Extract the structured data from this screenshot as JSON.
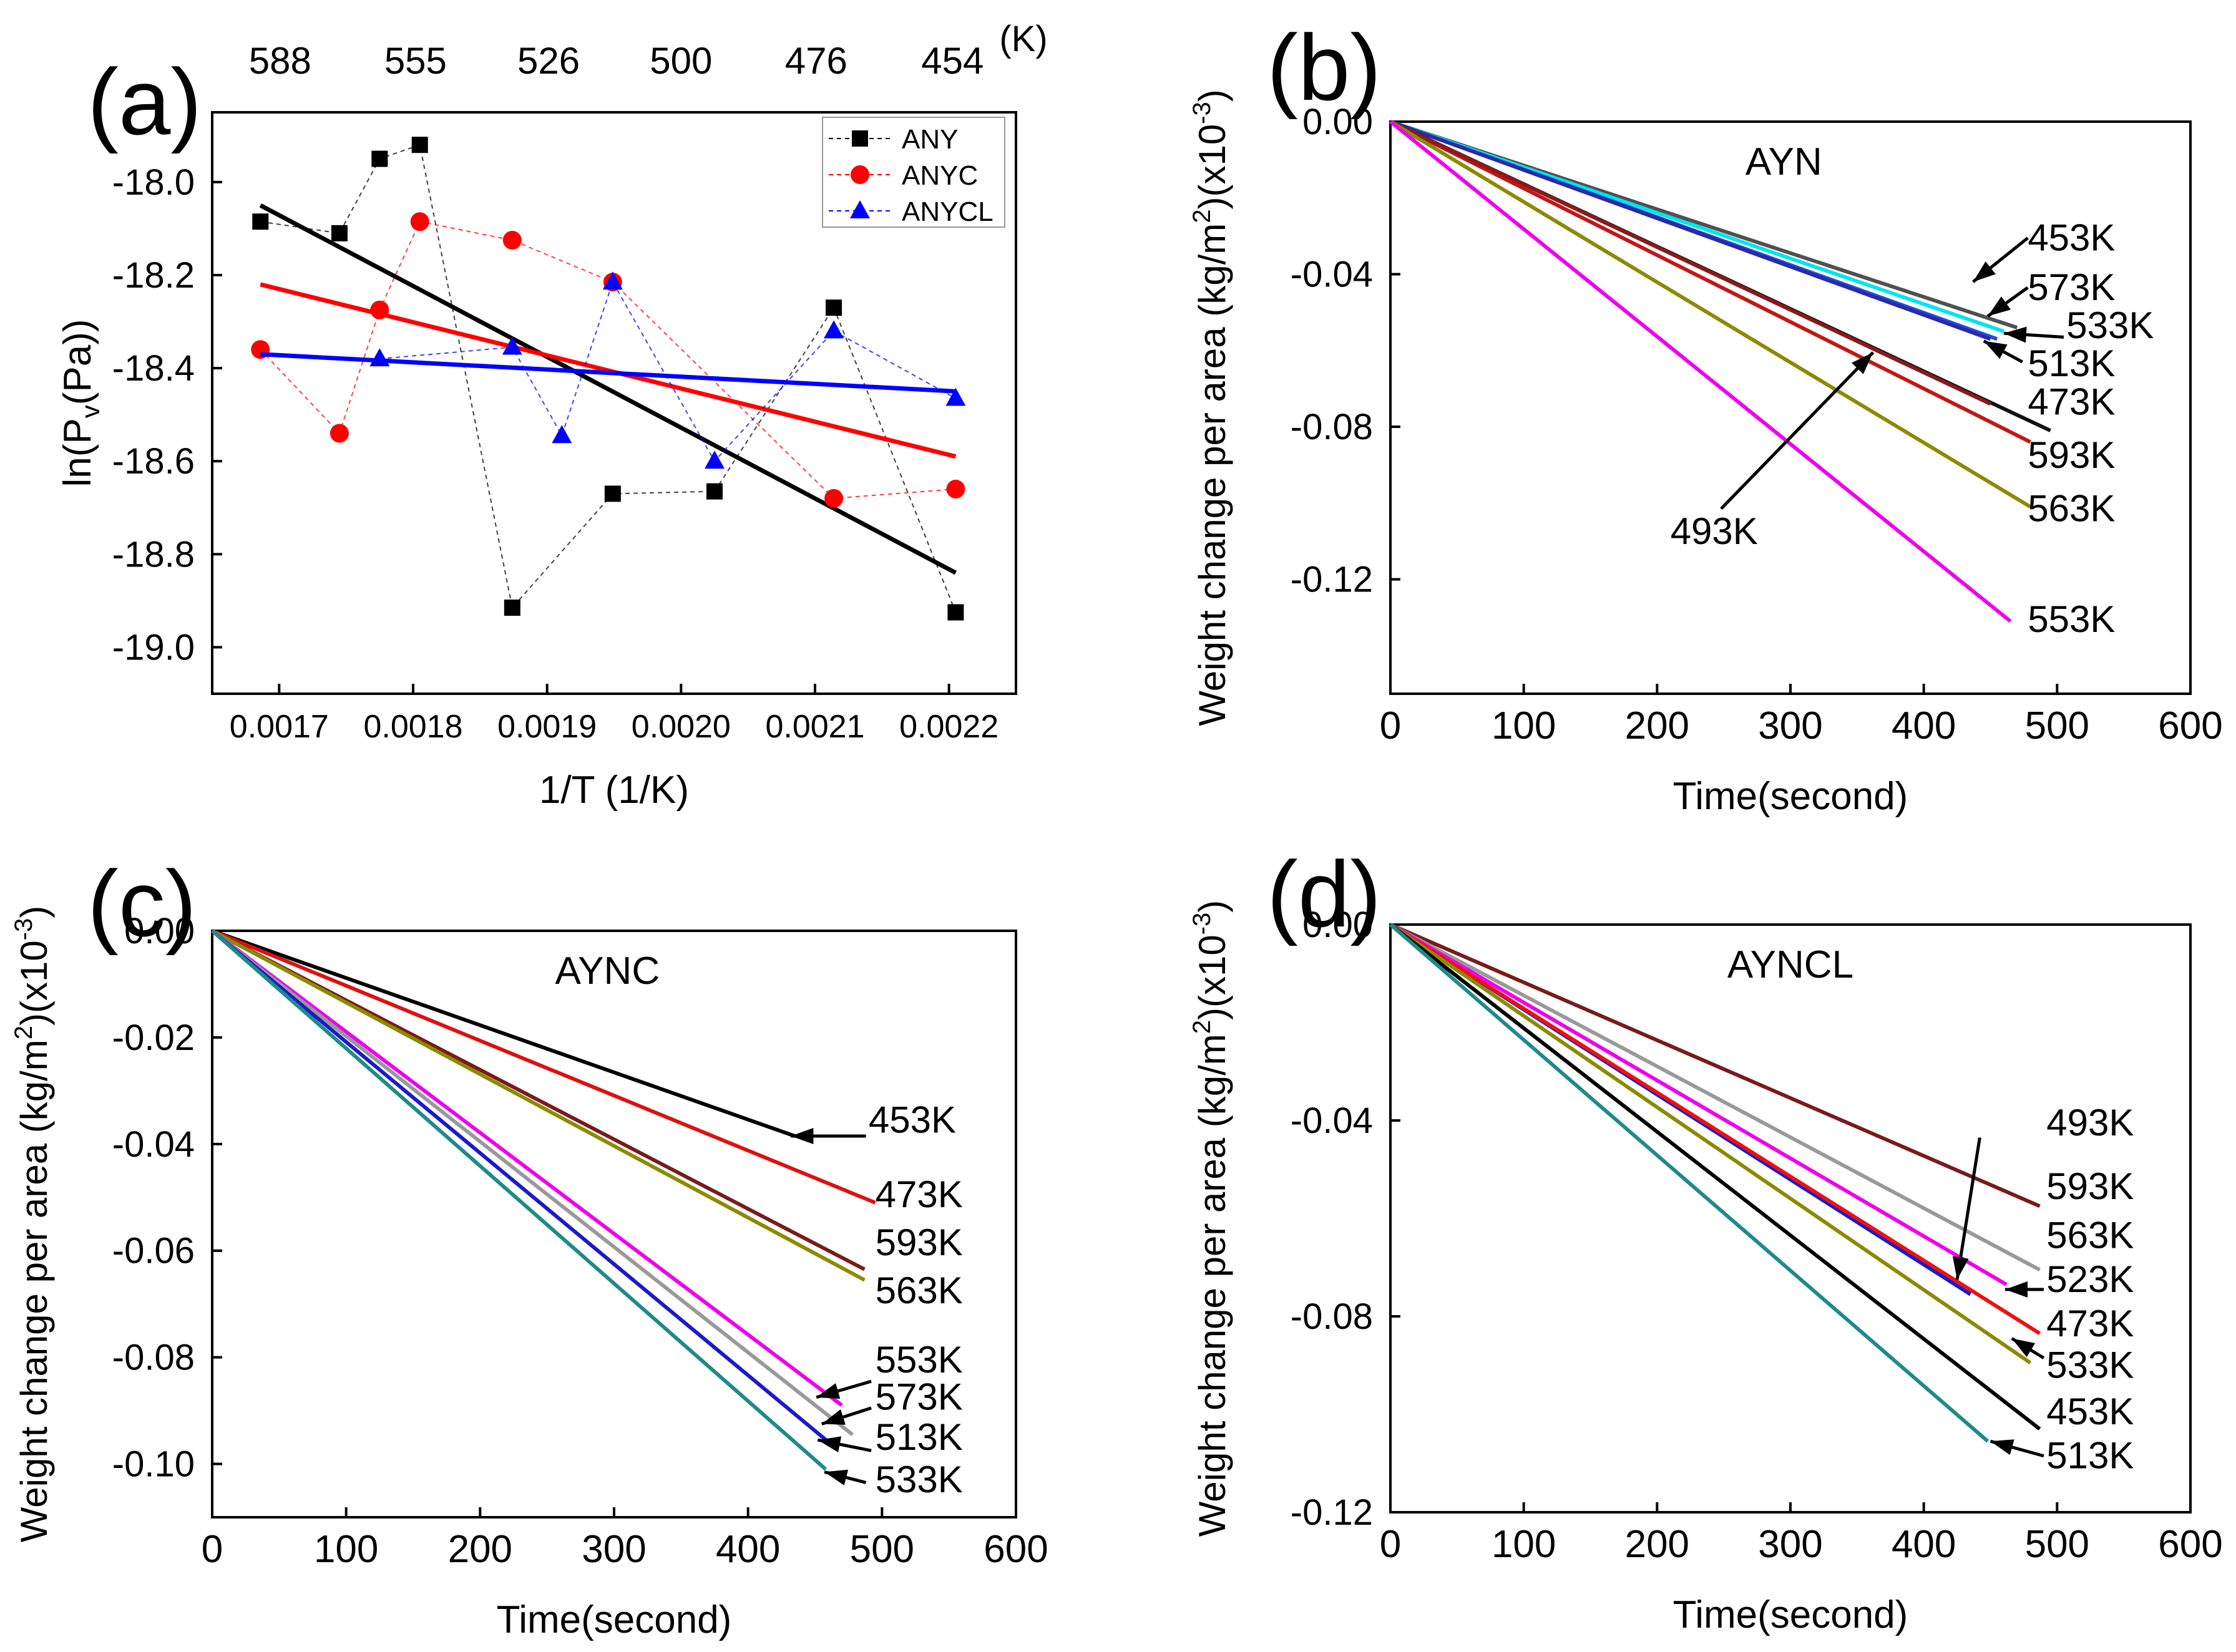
{
  "chart_data": [
    {
      "panel_label": "(a)",
      "type": "scatter",
      "title": "",
      "xlabel": "1/T (1/K)",
      "ylabel": "ln(P_v(Pa))",
      "ylabel_main": "ln(P",
      "ylabel_sub": "v",
      "ylabel_tail": "(Pa))",
      "xlim": [
        0.00165,
        0.00225
      ],
      "ylim": [
        -19.1,
        -17.85
      ],
      "xticks": [
        0.0017,
        0.0018,
        0.0019,
        0.002,
        0.0021,
        0.0022
      ],
      "xtick_labels": [
        "0.0017",
        "0.0018",
        "0.0019",
        "0.0020",
        "0.0021",
        "0.0022"
      ],
      "yticks": [
        -19.0,
        -18.8,
        -18.6,
        -18.4,
        -18.2,
        -18.0
      ],
      "ytick_labels": [
        "-19.0",
        "-18.8",
        "-18.6",
        "-18.4",
        "-18.2",
        "-18.0"
      ],
      "top_axis_label": "(K)",
      "top_ticks": [
        588,
        555,
        526,
        500,
        476,
        454
      ],
      "top_tick_labels": [
        "588",
        "555",
        "526",
        "500",
        "476",
        "454"
      ],
      "legend_position": "top-right",
      "series": [
        {
          "name": "ANY",
          "color": "#000000",
          "marker": "square",
          "x": [
            0.001686,
            0.001745,
            0.001775,
            0.001805,
            0.001874,
            0.001949,
            0.002025,
            0.002114,
            0.002205
          ],
          "y": [
            -18.085,
            -18.11,
            -17.95,
            -17.92,
            -18.915,
            -18.67,
            -18.665,
            -18.27,
            -18.925
          ],
          "fit": {
            "x": [
              0.001686,
              0.002205
            ],
            "y": [
              -18.05,
              -18.84
            ]
          }
        },
        {
          "name": "ANYC",
          "color": "#ff0000",
          "marker": "circle",
          "x": [
            0.001686,
            0.001745,
            0.001775,
            0.001805,
            0.001874,
            0.001949,
            0.002114,
            0.002205
          ],
          "y": [
            -18.36,
            -18.54,
            -18.275,
            -18.085,
            -18.125,
            -18.215,
            -18.68,
            -18.66
          ],
          "fit": {
            "x": [
              0.001686,
              0.002205
            ],
            "y": [
              -18.22,
              -18.59
            ]
          }
        },
        {
          "name": "ANYCL",
          "color": "#0000ff",
          "marker": "triangle",
          "x": [
            0.001775,
            0.001874,
            0.001911,
            0.001949,
            0.002025,
            0.002114,
            0.002205
          ],
          "y": [
            -18.38,
            -18.355,
            -18.545,
            -18.215,
            -18.6,
            -18.32,
            -18.465
          ],
          "fit": {
            "x": [
              0.001686,
              0.002205
            ],
            "y": [
              -18.37,
              -18.45
            ]
          }
        }
      ]
    },
    {
      "panel_label": "(b)",
      "type": "line",
      "title": "AYN",
      "xlabel": "Time(second)",
      "ylabel_pre": "Weight change per area (kg/m",
      "ylabel_sup1": "2",
      "ylabel_mid": ")(x10",
      "ylabel_sup2": "-3",
      "ylabel_post": ")",
      "xlim": [
        0,
        600
      ],
      "ylim": [
        -0.15,
        0.0
      ],
      "xticks": [
        0,
        100,
        200,
        300,
        400,
        500,
        600
      ],
      "xtick_labels": [
        "0",
        "100",
        "200",
        "300",
        "400",
        "500",
        "600"
      ],
      "yticks": [
        0.0,
        -0.04,
        -0.08,
        -0.12
      ],
      "ytick_labels": [
        "0.00",
        "-0.04",
        "-0.08",
        "-0.12"
      ],
      "series": [
        {
          "name": "453K",
          "color": "#505050",
          "x": [
            0,
            470
          ],
          "y": [
            0,
            -0.054
          ]
        },
        {
          "name": "573K",
          "color": "#00e5ee",
          "x": [
            0,
            460
          ],
          "y": [
            0,
            -0.055
          ]
        },
        {
          "name": "533K",
          "color": "#1e4fd6",
          "x": [
            0,
            455
          ],
          "y": [
            0,
            -0.057
          ]
        },
        {
          "name": "513K",
          "color": "#2a2aa8",
          "x": [
            0,
            450
          ],
          "y": [
            0,
            -0.057
          ]
        },
        {
          "name": "473K",
          "color": "#111111",
          "x": [
            0,
            495
          ],
          "y": [
            0,
            -0.081
          ]
        },
        {
          "name": "593K",
          "color": "#c01818",
          "x": [
            0,
            480
          ],
          "y": [
            0,
            -0.084
          ]
        },
        {
          "name": "493K",
          "color": "#8b1a1a",
          "x": [
            0,
            450
          ],
          "y": [
            0,
            -0.074
          ]
        },
        {
          "name": "563K",
          "color": "#8b8b00",
          "x": [
            0,
            480
          ],
          "y": [
            0,
            -0.101
          ]
        },
        {
          "name": "553K",
          "color": "#ee00ee",
          "x": [
            0,
            465
          ],
          "y": [
            0,
            -0.131
          ]
        }
      ],
      "annotations": [
        {
          "text": "453K",
          "x": 478,
          "y": -0.0305,
          "arrow_from": [
            478,
            -0.0305
          ],
          "arrow_to": [
            437,
            -0.042
          ]
        },
        {
          "text": "573K",
          "x": 478,
          "y": -0.0435,
          "arrow_from": [
            478,
            -0.0435
          ],
          "arrow_to": [
            448,
            -0.051
          ]
        },
        {
          "text": "533K",
          "x": 507,
          "y": -0.0535,
          "arrow_from": [
            505,
            -0.0565
          ],
          "arrow_to": [
            460,
            -0.0555
          ]
        },
        {
          "text": "513K",
          "x": 478,
          "y": -0.0635,
          "arrow_from": [
            474,
            -0.063
          ],
          "arrow_to": [
            445,
            -0.0575
          ]
        },
        {
          "text": "473K",
          "x": 478,
          "y": -0.0735,
          "arrow_from": null,
          "arrow_to": null
        },
        {
          "text": "593K",
          "x": 478,
          "y": -0.0875,
          "arrow_from": null,
          "arrow_to": null
        },
        {
          "text": "563K",
          "x": 478,
          "y": -0.1015,
          "arrow_from": null,
          "arrow_to": null
        },
        {
          "text": "553K",
          "x": 478,
          "y": -0.1305,
          "arrow_from": null,
          "arrow_to": null
        },
        {
          "text": "493K",
          "x": 210,
          "y": -0.1075,
          "arrow_from": [
            248,
            -0.1015
          ],
          "arrow_to": [
            362,
            -0.0605
          ]
        }
      ]
    },
    {
      "panel_label": "(c)",
      "type": "line",
      "title": "AYNC",
      "xlabel": "Time(second)",
      "ylabel_pre": "Weight change per area (kg/m",
      "ylabel_sup1": "2",
      "ylabel_mid": ")(x10",
      "ylabel_sup2": "-3",
      "ylabel_post": ")",
      "xlim": [
        0,
        600
      ],
      "ylim": [
        -0.11,
        0.0
      ],
      "xticks": [
        0,
        100,
        200,
        300,
        400,
        500,
        600
      ],
      "xtick_labels": [
        "0",
        "100",
        "200",
        "300",
        "400",
        "500",
        "600"
      ],
      "yticks": [
        0.0,
        -0.02,
        -0.04,
        -0.06,
        -0.08,
        -0.1
      ],
      "ytick_labels": [
        "0.00",
        "-0.02",
        "-0.04",
        "-0.06",
        "-0.08",
        "-0.10"
      ],
      "series": [
        {
          "name": "453K",
          "color": "#000000",
          "x": [
            0,
            435
          ],
          "y": [
            0,
            -0.0385
          ]
        },
        {
          "name": "473K",
          "color": "#dd1111",
          "x": [
            0,
            495
          ],
          "y": [
            0,
            -0.051
          ]
        },
        {
          "name": "593K",
          "color": "#7a1a1a",
          "x": [
            0,
            487
          ],
          "y": [
            0,
            -0.0635
          ]
        },
        {
          "name": "563K",
          "color": "#8b8b00",
          "x": [
            0,
            487
          ],
          "y": [
            0,
            -0.0655
          ]
        },
        {
          "name": "553K",
          "color": "#ee00ee",
          "x": [
            0,
            470
          ],
          "y": [
            0,
            -0.089
          ]
        },
        {
          "name": "573K",
          "color": "#999999",
          "x": [
            0,
            478
          ],
          "y": [
            0,
            -0.0945
          ]
        },
        {
          "name": "513K",
          "color": "#1a1acc",
          "x": [
            0,
            463
          ],
          "y": [
            0,
            -0.0965
          ]
        },
        {
          "name": "533K",
          "color": "#1f8a8a",
          "x": [
            0,
            458
          ],
          "y": [
            0,
            -0.101
          ]
        }
      ],
      "annotations": [
        {
          "text": "453K",
          "x": 490,
          "y": -0.0355,
          "arrow_from": [
            488,
            -0.0385
          ],
          "arrow_to": [
            432,
            -0.0385
          ]
        },
        {
          "text": "473K",
          "x": 495,
          "y": -0.0495,
          "arrow_from": null,
          "arrow_to": null
        },
        {
          "text": "593K",
          "x": 495,
          "y": -0.0585,
          "arrow_from": null,
          "arrow_to": null
        },
        {
          "text": "563K",
          "x": 495,
          "y": -0.0675,
          "arrow_from": null,
          "arrow_to": null
        },
        {
          "text": "553K",
          "x": 495,
          "y": -0.0805,
          "arrow_from": [
            492,
            -0.0845
          ],
          "arrow_to": [
            451,
            -0.0875
          ]
        },
        {
          "text": "573K",
          "x": 495,
          "y": -0.0875,
          "arrow_from": [
            492,
            -0.0895
          ],
          "arrow_to": [
            455,
            -0.0925
          ]
        },
        {
          "text": "513K",
          "x": 495,
          "y": -0.095,
          "arrow_from": [
            492,
            -0.0975
          ],
          "arrow_to": [
            452,
            -0.0955
          ]
        },
        {
          "text": "533K",
          "x": 495,
          "y": -0.103,
          "arrow_from": [
            488,
            -0.1035
          ],
          "arrow_to": [
            457,
            -0.1015
          ]
        }
      ]
    },
    {
      "panel_label": "(d)",
      "type": "line",
      "title": "AYNCL",
      "xlabel": "Time(second)",
      "ylabel_pre": "Weight change per area (kg/m",
      "ylabel_sup1": "2",
      "ylabel_mid": ")(x10",
      "ylabel_sup2": "-3",
      "ylabel_post": ")",
      "xlim": [
        0,
        600
      ],
      "ylim": [
        -0.12,
        0.0
      ],
      "xticks": [
        0,
        100,
        200,
        300,
        400,
        500,
        600
      ],
      "xtick_labels": [
        "0",
        "100",
        "200",
        "300",
        "400",
        "500",
        "600"
      ],
      "yticks": [
        0.0,
        -0.04,
        -0.08,
        -0.12
      ],
      "ytick_labels": [
        "0.00",
        "-0.04",
        "-0.08",
        "-0.12"
      ],
      "series": [
        {
          "name": "493K",
          "color": "#7a1a1a",
          "x": [
            0,
            487
          ],
          "y": [
            0,
            -0.0575
          ]
        },
        {
          "name": "593K",
          "color": "#999999",
          "x": [
            0,
            487
          ],
          "y": [
            0,
            -0.0705
          ]
        },
        {
          "name": "563K",
          "color": "#ee00ee",
          "x": [
            0,
            462
          ],
          "y": [
            0,
            -0.0735
          ]
        },
        {
          "name": "523K",
          "color": "#1a1acc",
          "x": [
            0,
            435
          ],
          "y": [
            0,
            -0.0755
          ]
        },
        {
          "name": "473K",
          "color": "#ee1111",
          "x": [
            0,
            487
          ],
          "y": [
            0,
            -0.0835
          ]
        },
        {
          "name": "533K",
          "color": "#8b8b00",
          "x": [
            0,
            480
          ],
          "y": [
            0,
            -0.0895
          ]
        },
        {
          "name": "453K",
          "color": "#000000",
          "x": [
            0,
            487
          ],
          "y": [
            0,
            -0.103
          ]
        },
        {
          "name": "513K",
          "color": "#1f8a8a",
          "x": [
            0,
            448
          ],
          "y": [
            0,
            -0.1055
          ]
        }
      ],
      "annotations": [
        {
          "text": "493K",
          "x": 492,
          "y": -0.0405,
          "arrow_from": [
            442,
            -0.0435
          ],
          "arrow_to": [
            425,
            -0.0725
          ]
        },
        {
          "text": "593K",
          "x": 492,
          "y": -0.0535,
          "arrow_from": null,
          "arrow_to": null
        },
        {
          "text": "563K",
          "x": 492,
          "y": -0.0635,
          "arrow_from": null,
          "arrow_to": null
        },
        {
          "text": "523K",
          "x": 492,
          "y": -0.0725,
          "arrow_from": [
            490,
            -0.0745
          ],
          "arrow_to": [
            461,
            -0.0745
          ]
        },
        {
          "text": "473K",
          "x": 492,
          "y": -0.0815,
          "arrow_from": null,
          "arrow_to": null
        },
        {
          "text": "533K",
          "x": 492,
          "y": -0.09,
          "arrow_from": [
            490,
            -0.0885
          ],
          "arrow_to": [
            466,
            -0.0845
          ]
        },
        {
          "text": "453K",
          "x": 492,
          "y": -0.0995,
          "arrow_from": null,
          "arrow_to": null
        },
        {
          "text": "513K",
          "x": 492,
          "y": -0.1085,
          "arrow_from": [
            490,
            -0.1085
          ],
          "arrow_to": [
            450,
            -0.1055
          ]
        }
      ]
    }
  ]
}
